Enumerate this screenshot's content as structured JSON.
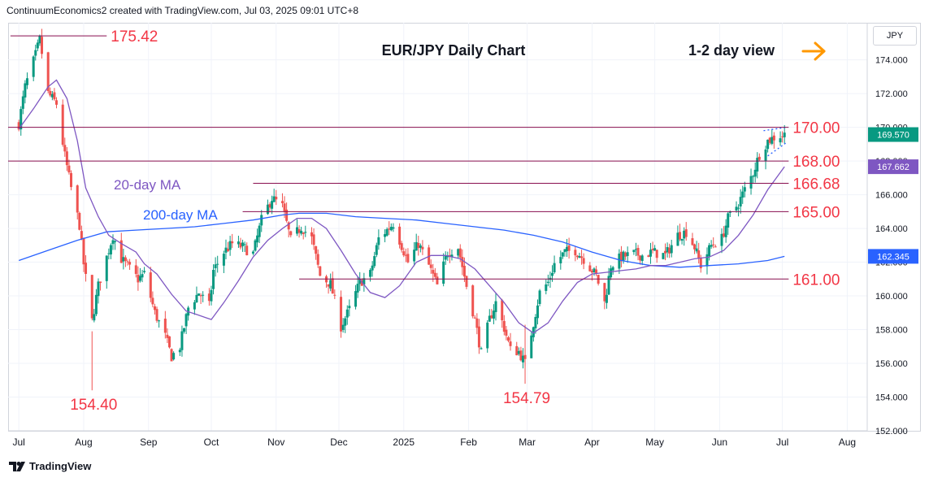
{
  "header": {
    "attribution": "ContinuumEconomics2 created with TradingView.com, Jul 03, 2025 09:01 UTC+8"
  },
  "footer": {
    "brand": "TradingView"
  },
  "price_scale": {
    "currency": "JPY"
  },
  "colors": {
    "up": "#089981",
    "down": "#ef5350",
    "level_line": "#880e4f",
    "level_text": "#f23645",
    "ma20": "#7e57c2",
    "ma200": "#2962ff",
    "arrow": "#ff9800"
  },
  "chart_data": {
    "type": "candlestick",
    "title": "EUR/JPY Daily Chart",
    "subtitle": "1-2 day view",
    "arrow_icon": "arrow-right",
    "ylim": [
      152,
      176.2
    ],
    "y_ticks": [
      "152.000",
      "154.000",
      "156.000",
      "158.000",
      "160.000",
      "162.000",
      "164.000",
      "166.000",
      "168.000",
      "170.000",
      "172.000",
      "174.000"
    ],
    "x_ticks": [
      "Jul",
      "Aug",
      "Sep",
      "Oct",
      "Nov",
      "Dec",
      "2025",
      "Feb",
      "Mar",
      "Apr",
      "May",
      "Jun",
      "Jul",
      "Aug"
    ],
    "levels": [
      {
        "label": "175.42",
        "value": 175.42
      },
      {
        "label": "170.00",
        "value": 170.0
      },
      {
        "label": "168.00",
        "value": 168.0
      },
      {
        "label": "166.68",
        "value": 166.68
      },
      {
        "label": "165.00",
        "value": 165.0
      },
      {
        "label": "161.00",
        "value": 161.0
      }
    ],
    "lows": [
      {
        "label": "154.40",
        "value": 154.4,
        "date": "Aug 5"
      },
      {
        "label": "154.79",
        "value": 154.79,
        "date": "Feb 28"
      }
    ],
    "ma_labels": {
      "ma20": "20-day MA",
      "ma200": "200-day MA"
    },
    "price_badges": [
      {
        "label": "169.570",
        "value": 169.57,
        "color": "#089981"
      },
      {
        "label": "167.662",
        "value": 167.662,
        "color": "#7e57c2"
      },
      {
        "label": "162.345",
        "value": 162.345,
        "color": "#2962ff"
      }
    ],
    "close_path": [
      {
        "x": "Jul 1",
        "y": 170.2
      },
      {
        "x": "Jul 4",
        "y": 172.4
      },
      {
        "x": "Jul 9",
        "y": 174.3
      },
      {
        "x": "Jul 11",
        "y": 175.2
      },
      {
        "x": "Jul 15",
        "y": 172.0
      },
      {
        "x": "Jul 19",
        "y": 171.4
      },
      {
        "x": "Jul 23",
        "y": 168.3
      },
      {
        "x": "Jul 26",
        "y": 166.4
      },
      {
        "x": "Jul 30",
        "y": 164.2
      },
      {
        "x": "Aug 1",
        "y": 161.9
      },
      {
        "x": "Aug 5",
        "y": 158.5
      },
      {
        "x": "Aug 8",
        "y": 160.6
      },
      {
        "x": "Aug 12",
        "y": 162.3
      },
      {
        "x": "Aug 15",
        "y": 163.6
      },
      {
        "x": "Aug 19",
        "y": 162.2
      },
      {
        "x": "Aug 23",
        "y": 161.6
      },
      {
        "x": "Aug 27",
        "y": 161.0
      },
      {
        "x": "Aug 30",
        "y": 161.3
      },
      {
        "x": "Sep 4",
        "y": 159.0
      },
      {
        "x": "Sep 9",
        "y": 157.6
      },
      {
        "x": "Sep 12",
        "y": 156.4
      },
      {
        "x": "Sep 16",
        "y": 157.0
      },
      {
        "x": "Sep 20",
        "y": 159.3
      },
      {
        "x": "Sep 25",
        "y": 160.2
      },
      {
        "x": "Sep 30",
        "y": 159.4
      },
      {
        "x": "Oct 2",
        "y": 161.5
      },
      {
        "x": "Oct 7",
        "y": 162.6
      },
      {
        "x": "Oct 11",
        "y": 163.1
      },
      {
        "x": "Oct 16",
        "y": 162.9
      },
      {
        "x": "Oct 21",
        "y": 162.5
      },
      {
        "x": "Oct 25",
        "y": 164.5
      },
      {
        "x": "Oct 30",
        "y": 165.8
      },
      {
        "x": "Nov 4",
        "y": 165.3
      },
      {
        "x": "Nov 8",
        "y": 163.3
      },
      {
        "x": "Nov 13",
        "y": 164.1
      },
      {
        "x": "Nov 18",
        "y": 163.4
      },
      {
        "x": "Nov 22",
        "y": 161.2
      },
      {
        "x": "Nov 27",
        "y": 160.7
      },
      {
        "x": "Dec 2",
        "y": 158.2
      },
      {
        "x": "Dec 6",
        "y": 159.2
      },
      {
        "x": "Dec 11",
        "y": 160.8
      },
      {
        "x": "Dec 16",
        "y": 161.3
      },
      {
        "x": "Dec 20",
        "y": 163.4
      },
      {
        "x": "Dec 27",
        "y": 164.3
      },
      {
        "x": "Jan 3",
        "y": 162.0
      },
      {
        "x": "Jan 8",
        "y": 163.1
      },
      {
        "x": "Jan 13",
        "y": 161.8
      },
      {
        "x": "Jan 17",
        "y": 160.6
      },
      {
        "x": "Jan 22",
        "y": 162.6
      },
      {
        "x": "Jan 27",
        "y": 162.9
      },
      {
        "x": "Jan 31",
        "y": 160.6
      },
      {
        "x": "Feb 4",
        "y": 158.6
      },
      {
        "x": "Feb 7",
        "y": 156.6
      },
      {
        "x": "Feb 11",
        "y": 158.6
      },
      {
        "x": "Feb 14",
        "y": 159.6
      },
      {
        "x": "Feb 18",
        "y": 158.1
      },
      {
        "x": "Feb 21",
        "y": 156.8
      },
      {
        "x": "Feb 25",
        "y": 156.7
      },
      {
        "x": "Feb 28",
        "y": 156.0
      },
      {
        "x": "Mar 4",
        "y": 158.4
      },
      {
        "x": "Mar 7",
        "y": 160.2
      },
      {
        "x": "Mar 11",
        "y": 160.8
      },
      {
        "x": "Mar 14",
        "y": 161.9
      },
      {
        "x": "Mar 19",
        "y": 162.6
      },
      {
        "x": "Mar 24",
        "y": 162.7
      },
      {
        "x": "Mar 28",
        "y": 162.2
      },
      {
        "x": "Apr 3",
        "y": 161.2
      },
      {
        "x": "Apr 7",
        "y": 159.6
      },
      {
        "x": "Apr 10",
        "y": 161.8
      },
      {
        "x": "Apr 15",
        "y": 162.3
      },
      {
        "x": "Apr 21",
        "y": 162.5
      },
      {
        "x": "Apr 25",
        "y": 162.4
      },
      {
        "x": "Apr 30",
        "y": 162.6
      },
      {
        "x": "May 6",
        "y": 162.4
      },
      {
        "x": "May 12",
        "y": 163.6
      },
      {
        "x": "May 16",
        "y": 163.8
      },
      {
        "x": "May 20",
        "y": 162.9
      },
      {
        "x": "May 23",
        "y": 161.8
      },
      {
        "x": "May 28",
        "y": 163.0
      },
      {
        "x": "Jun 2",
        "y": 163.4
      },
      {
        "x": "Jun 5",
        "y": 164.6
      },
      {
        "x": "Jun 10",
        "y": 165.5
      },
      {
        "x": "Jun 13",
        "y": 166.3
      },
      {
        "x": "Jun 17",
        "y": 167.3
      },
      {
        "x": "Jun 20",
        "y": 168.4
      },
      {
        "x": "Jun 24",
        "y": 169.2
      },
      {
        "x": "Jun 27",
        "y": 169.4
      },
      {
        "x": "Jul 2",
        "y": 169.57
      }
    ],
    "ma20_path": [
      {
        "x": "Jul 1",
        "y": 169.9
      },
      {
        "x": "Jul 8",
        "y": 171.1
      },
      {
        "x": "Jul 15",
        "y": 172.4
      },
      {
        "x": "Jul 19",
        "y": 172.8
      },
      {
        "x": "Jul 24",
        "y": 171.7
      },
      {
        "x": "Jul 29",
        "y": 169.2
      },
      {
        "x": "Aug 2",
        "y": 166.4
      },
      {
        "x": "Aug 8",
        "y": 164.7
      },
      {
        "x": "Aug 13",
        "y": 163.6
      },
      {
        "x": "Aug 19",
        "y": 163.1
      },
      {
        "x": "Aug 26",
        "y": 162.6
      },
      {
        "x": "Aug 30",
        "y": 161.9
      },
      {
        "x": "Sep 5",
        "y": 161.3
      },
      {
        "x": "Sep 12",
        "y": 160.1
      },
      {
        "x": "Sep 19",
        "y": 159.1
      },
      {
        "x": "Sep 24",
        "y": 158.9
      },
      {
        "x": "Oct 1",
        "y": 158.6
      },
      {
        "x": "Oct 7",
        "y": 159.6
      },
      {
        "x": "Oct 14",
        "y": 160.9
      },
      {
        "x": "Oct 21",
        "y": 162.3
      },
      {
        "x": "Oct 28",
        "y": 163.3
      },
      {
        "x": "Nov 4",
        "y": 164.0
      },
      {
        "x": "Nov 11",
        "y": 164.6
      },
      {
        "x": "Nov 18",
        "y": 164.6
      },
      {
        "x": "Nov 25",
        "y": 164.0
      },
      {
        "x": "Dec 2",
        "y": 162.7
      },
      {
        "x": "Dec 9",
        "y": 161.3
      },
      {
        "x": "Dec 16",
        "y": 160.2
      },
      {
        "x": "Dec 23",
        "y": 159.9
      },
      {
        "x": "Dec 30",
        "y": 160.6
      },
      {
        "x": "Jan 7",
        "y": 162.0
      },
      {
        "x": "Jan 14",
        "y": 162.4
      },
      {
        "x": "Jan 21",
        "y": 162.4
      },
      {
        "x": "Jan 28",
        "y": 162.2
      },
      {
        "x": "Feb 4",
        "y": 161.6
      },
      {
        "x": "Feb 11",
        "y": 160.6
      },
      {
        "x": "Feb 18",
        "y": 159.6
      },
      {
        "x": "Feb 25",
        "y": 158.4
      },
      {
        "x": "Mar 4",
        "y": 157.8
      },
      {
        "x": "Mar 11",
        "y": 158.4
      },
      {
        "x": "Mar 18",
        "y": 159.7
      },
      {
        "x": "Mar 25",
        "y": 160.8
      },
      {
        "x": "Apr 1",
        "y": 161.3
      },
      {
        "x": "Apr 8",
        "y": 161.4
      },
      {
        "x": "Apr 15",
        "y": 161.5
      },
      {
        "x": "Apr 22",
        "y": 161.6
      },
      {
        "x": "Apr 29",
        "y": 161.8
      },
      {
        "x": "May 6",
        "y": 161.8
      },
      {
        "x": "May 13",
        "y": 162.0
      },
      {
        "x": "May 20",
        "y": 162.2
      },
      {
        "x": "May 27",
        "y": 162.3
      },
      {
        "x": "Jun 3",
        "y": 162.7
      },
      {
        "x": "Jun 10",
        "y": 163.6
      },
      {
        "x": "Jun 17",
        "y": 164.8
      },
      {
        "x": "Jun 24",
        "y": 166.3
      },
      {
        "x": "Jul 2",
        "y": 167.662
      }
    ],
    "ma200_path": [
      {
        "x": "Jul 1",
        "y": 162.1
      },
      {
        "x": "Jul 15",
        "y": 162.7
      },
      {
        "x": "Jul 29",
        "y": 163.3
      },
      {
        "x": "Aug 12",
        "y": 163.8
      },
      {
        "x": "Aug 26",
        "y": 163.9
      },
      {
        "x": "Sep 9",
        "y": 164.0
      },
      {
        "x": "Sep 23",
        "y": 164.1
      },
      {
        "x": "Oct 7",
        "y": 164.3
      },
      {
        "x": "Oct 21",
        "y": 164.5
      },
      {
        "x": "Nov 4",
        "y": 164.8
      },
      {
        "x": "Nov 12",
        "y": 164.9
      },
      {
        "x": "Nov 25",
        "y": 164.9
      },
      {
        "x": "Dec 9",
        "y": 164.7
      },
      {
        "x": "Dec 23",
        "y": 164.6
      },
      {
        "x": "Jan 7",
        "y": 164.5
      },
      {
        "x": "Jan 21",
        "y": 164.3
      },
      {
        "x": "Feb 4",
        "y": 164.1
      },
      {
        "x": "Feb 18",
        "y": 163.9
      },
      {
        "x": "Mar 4",
        "y": 163.6
      },
      {
        "x": "Mar 18",
        "y": 163.2
      },
      {
        "x": "Apr 1",
        "y": 162.6
      },
      {
        "x": "Apr 15",
        "y": 162.1
      },
      {
        "x": "Apr 29",
        "y": 161.8
      },
      {
        "x": "May 13",
        "y": 161.7
      },
      {
        "x": "May 27",
        "y": 161.8
      },
      {
        "x": "Jun 10",
        "y": 161.9
      },
      {
        "x": "Jun 24",
        "y": 162.1
      },
      {
        "x": "Jul 2",
        "y": 162.345
      }
    ],
    "wedge_upper": [
      {
        "x": "Jun 22",
        "y": 169.8
      },
      {
        "x": "Jul 3",
        "y": 170.0
      }
    ],
    "wedge_lower": [
      {
        "x": "Jun 24",
        "y": 168.3
      },
      {
        "x": "Jul 3",
        "y": 169.1
      }
    ]
  }
}
